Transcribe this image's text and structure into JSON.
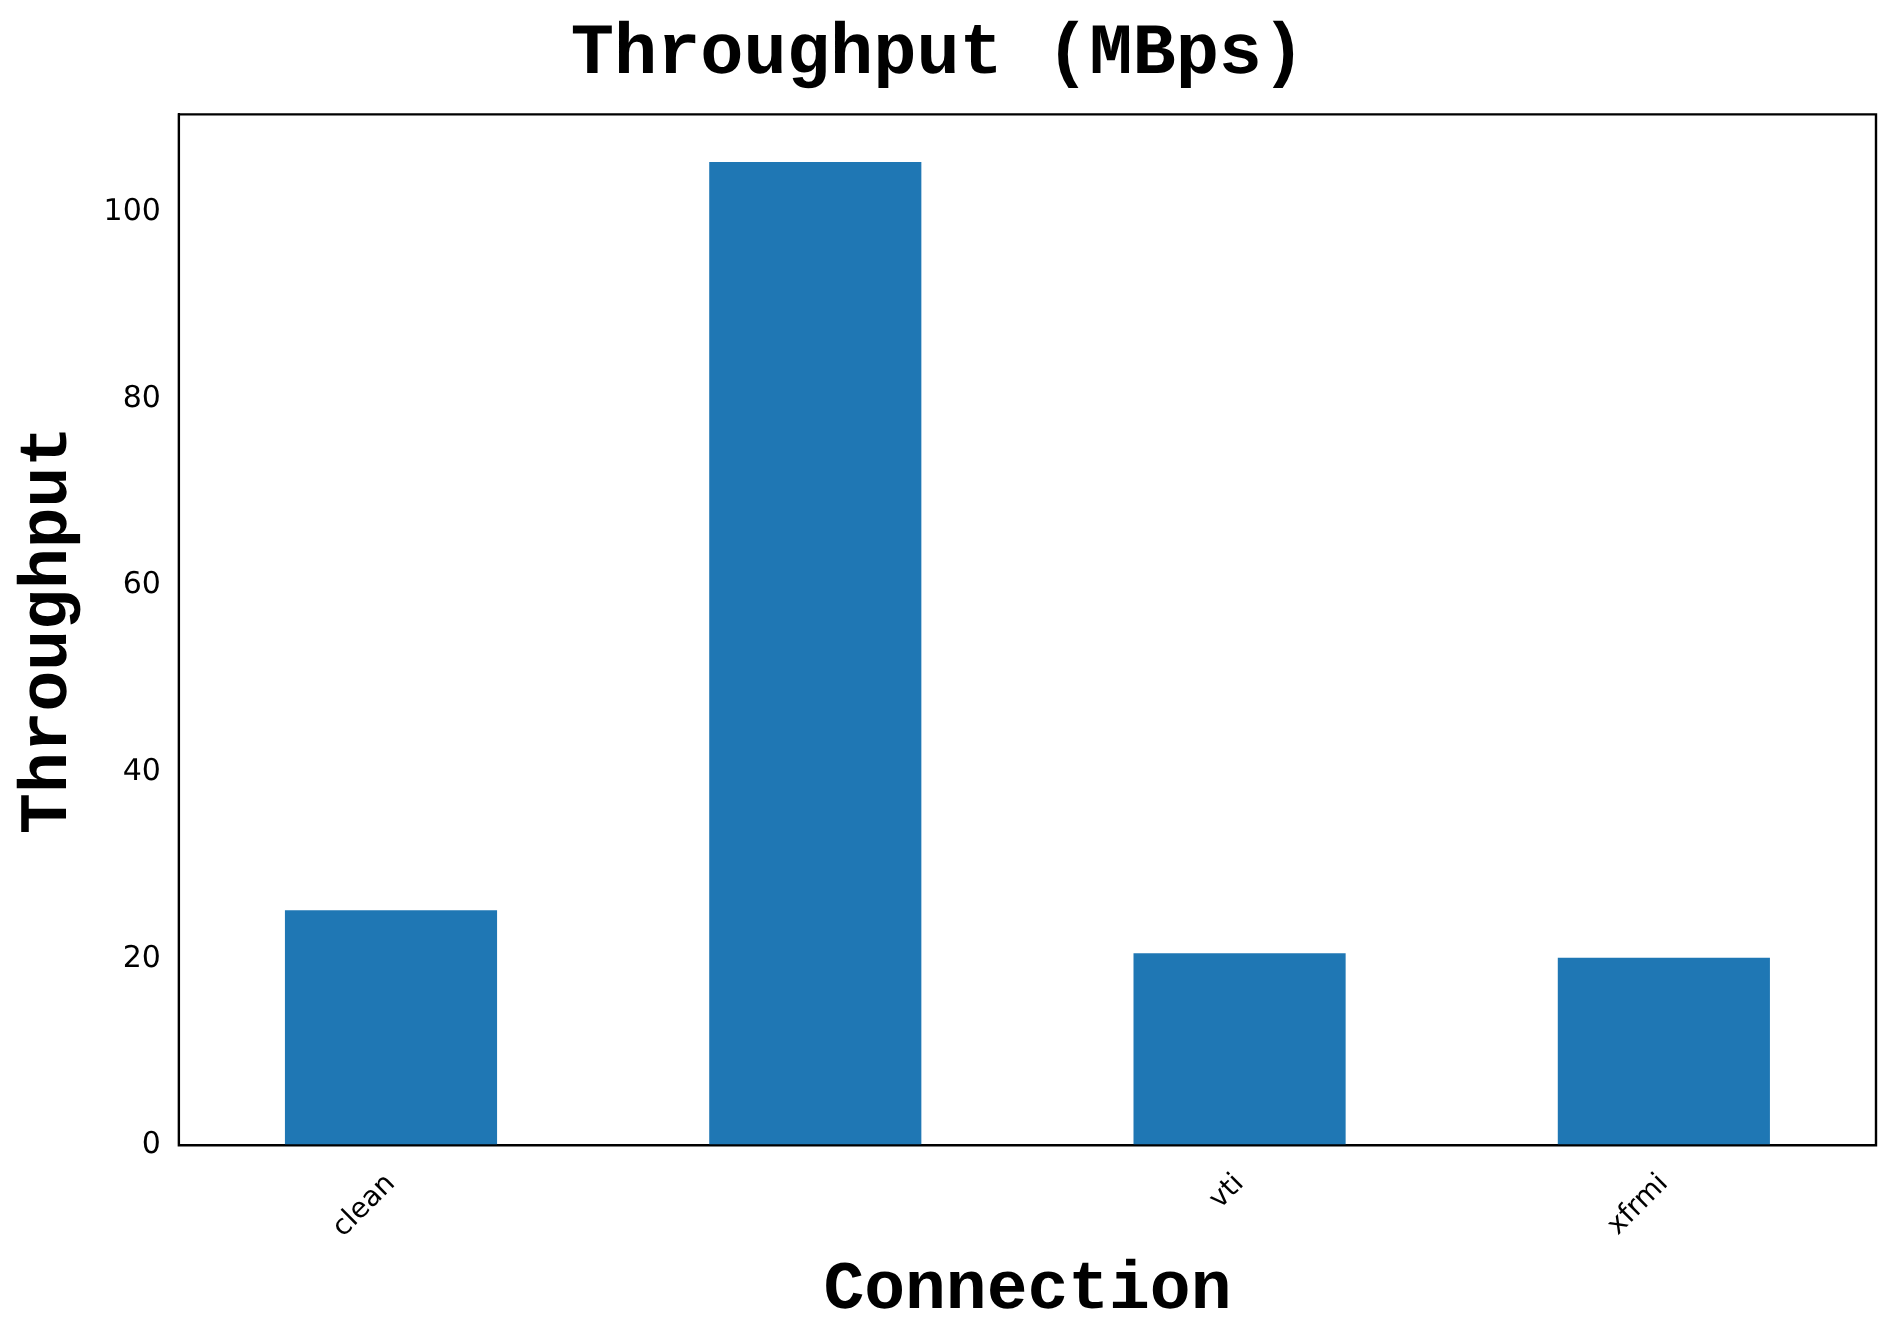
{
  "chart_data": {
    "type": "bar",
    "title": "Throughput (MBps)",
    "xlabel": "Connection",
    "ylabel": "Throughput",
    "categories": [
      "clean",
      null,
      "vti",
      "xfrmi"
    ],
    "values": [
      25.2,
      105.4,
      20.6,
      20.1
    ],
    "color": "#1f77b4",
    "ylim": [
      0,
      110.5
    ],
    "yticks": [
      0,
      20,
      40,
      60,
      80,
      100
    ],
    "grid": false,
    "legend": false
  }
}
